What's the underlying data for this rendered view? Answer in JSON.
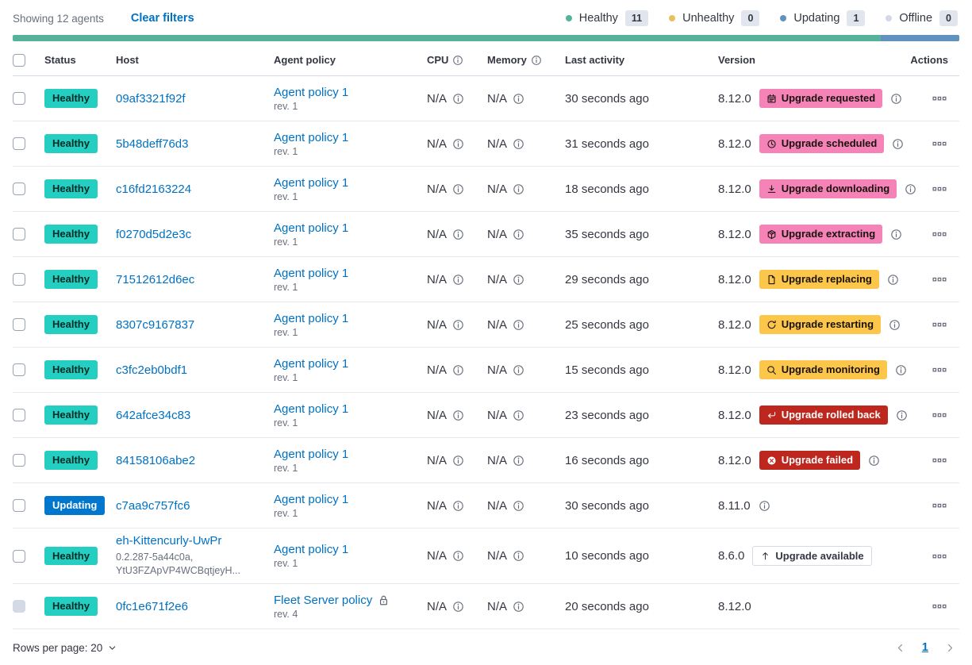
{
  "topbar": {
    "showing": "Showing 12 agents",
    "clear_filters": "Clear filters",
    "legend": [
      {
        "label": "Healthy",
        "count": "11",
        "color": "#54B399"
      },
      {
        "label": "Unhealthy",
        "count": "0",
        "color": "#E7C15F"
      },
      {
        "label": "Updating",
        "count": "1",
        "color": "#6092C0"
      },
      {
        "label": "Offline",
        "count": "0",
        "color": "#D3DAE6"
      }
    ],
    "healthbar": {
      "segments": [
        {
          "status": "healthy",
          "color": "#54B399",
          "fraction": 0.9167
        },
        {
          "status": "updating",
          "color": "#6092C0",
          "fraction": 0.0833
        }
      ]
    }
  },
  "table": {
    "columns": [
      "Status",
      "Host",
      "Agent policy",
      "CPU",
      "Memory",
      "Last activity",
      "Version",
      "Actions"
    ],
    "rows": [
      {
        "status": "Healthy",
        "status_color": "success",
        "host": "09af3321f92f",
        "policy": "Agent policy 1",
        "rev": "rev. 1",
        "cpu": "N/A",
        "memory": "N/A",
        "activity": "30 seconds ago",
        "version": "8.12.0",
        "upgrade": {
          "label": "Upgrade requested",
          "icon": "calendar",
          "color": "pink"
        },
        "info": true
      },
      {
        "status": "Healthy",
        "status_color": "success",
        "host": "5b48deff76d3",
        "policy": "Agent policy 1",
        "rev": "rev. 1",
        "cpu": "N/A",
        "memory": "N/A",
        "activity": "31 seconds ago",
        "version": "8.12.0",
        "upgrade": {
          "label": "Upgrade scheduled",
          "icon": "clock",
          "color": "pink"
        },
        "info": true
      },
      {
        "status": "Healthy",
        "status_color": "success",
        "host": "c16fd2163224",
        "policy": "Agent policy 1",
        "rev": "rev. 1",
        "cpu": "N/A",
        "memory": "N/A",
        "activity": "18 seconds ago",
        "version": "8.12.0",
        "upgrade": {
          "label": "Upgrade downloading",
          "icon": "download",
          "color": "pink"
        },
        "info": true
      },
      {
        "status": "Healthy",
        "status_color": "success",
        "host": "f0270d5d2e3c",
        "policy": "Agent policy 1",
        "rev": "rev. 1",
        "cpu": "N/A",
        "memory": "N/A",
        "activity": "35 seconds ago",
        "version": "8.12.0",
        "upgrade": {
          "label": "Upgrade extracting",
          "icon": "package",
          "color": "pink"
        },
        "info": true
      },
      {
        "status": "Healthy",
        "status_color": "success",
        "host": "71512612d6ec",
        "policy": "Agent policy 1",
        "rev": "rev. 1",
        "cpu": "N/A",
        "memory": "N/A",
        "activity": "29 seconds ago",
        "version": "8.12.0",
        "upgrade": {
          "label": "Upgrade replacing",
          "icon": "document",
          "color": "warning"
        },
        "info": true
      },
      {
        "status": "Healthy",
        "status_color": "success",
        "host": "8307c9167837",
        "policy": "Agent policy 1",
        "rev": "rev. 1",
        "cpu": "N/A",
        "memory": "N/A",
        "activity": "25 seconds ago",
        "version": "8.12.0",
        "upgrade": {
          "label": "Upgrade restarting",
          "icon": "refresh",
          "color": "warning"
        },
        "info": true
      },
      {
        "status": "Healthy",
        "status_color": "success",
        "host": "c3fc2eb0bdf1",
        "policy": "Agent policy 1",
        "rev": "rev. 1",
        "cpu": "N/A",
        "memory": "N/A",
        "activity": "15 seconds ago",
        "version": "8.12.0",
        "upgrade": {
          "label": "Upgrade monitoring",
          "icon": "inspect",
          "color": "warning"
        },
        "info": true
      },
      {
        "status": "Healthy",
        "status_color": "success",
        "host": "642afce34c83",
        "policy": "Agent policy 1",
        "rev": "rev. 1",
        "cpu": "N/A",
        "memory": "N/A",
        "activity": "23 seconds ago",
        "version": "8.12.0",
        "upgrade": {
          "label": "Upgrade rolled back",
          "icon": "return",
          "color": "danger"
        },
        "info": true
      },
      {
        "status": "Healthy",
        "status_color": "success",
        "host": "84158106abe2",
        "policy": "Agent policy 1",
        "rev": "rev. 1",
        "cpu": "N/A",
        "memory": "N/A",
        "activity": "16 seconds ago",
        "version": "8.12.0",
        "upgrade": {
          "label": "Upgrade failed",
          "icon": "error",
          "color": "danger"
        },
        "info": true
      },
      {
        "status": "Updating",
        "status_color": "primary",
        "host": "c7aa9c757fc6",
        "policy": "Agent policy 1",
        "rev": "rev. 1",
        "cpu": "N/A",
        "memory": "N/A",
        "activity": "30 seconds ago",
        "version": "8.11.0",
        "upgrade": null,
        "info": true
      },
      {
        "status": "Healthy",
        "status_color": "success",
        "host": "eh-Kittencurly-UwPr",
        "host_sub": "0.2.287-5a44c0a,\nYtU3FZApVP4WCBqtjeyH...",
        "policy": "Agent policy 1",
        "rev": "rev. 1",
        "cpu": "N/A",
        "memory": "N/A",
        "activity": "10 seconds ago",
        "version": "8.6.0",
        "upgrade": {
          "label": "Upgrade available",
          "icon": "sortUp",
          "color": "hollow"
        },
        "info": false
      },
      {
        "status": "Healthy",
        "status_color": "success",
        "host": "0fc1e671f2e6",
        "policy": "Fleet Server policy",
        "policy_locked": true,
        "rev": "rev. 4",
        "cpu": "N/A",
        "memory": "N/A",
        "activity": "20 seconds ago",
        "version": "8.12.0",
        "upgrade": null,
        "info": false,
        "checkbox_disabled": true
      }
    ]
  },
  "footer": {
    "rows_per_page": "Rows per page: 20",
    "page": "1"
  },
  "colors": {
    "healthy_badge": "#24CEC1",
    "updating_badge": "#0077CC",
    "upgrade_pink": "#F583B7",
    "upgrade_warning": "#FBC64A",
    "upgrade_danger": "#BD271E",
    "bar_healthy": "#54B399",
    "bar_updating": "#6092C0",
    "link": "#0071C2"
  }
}
